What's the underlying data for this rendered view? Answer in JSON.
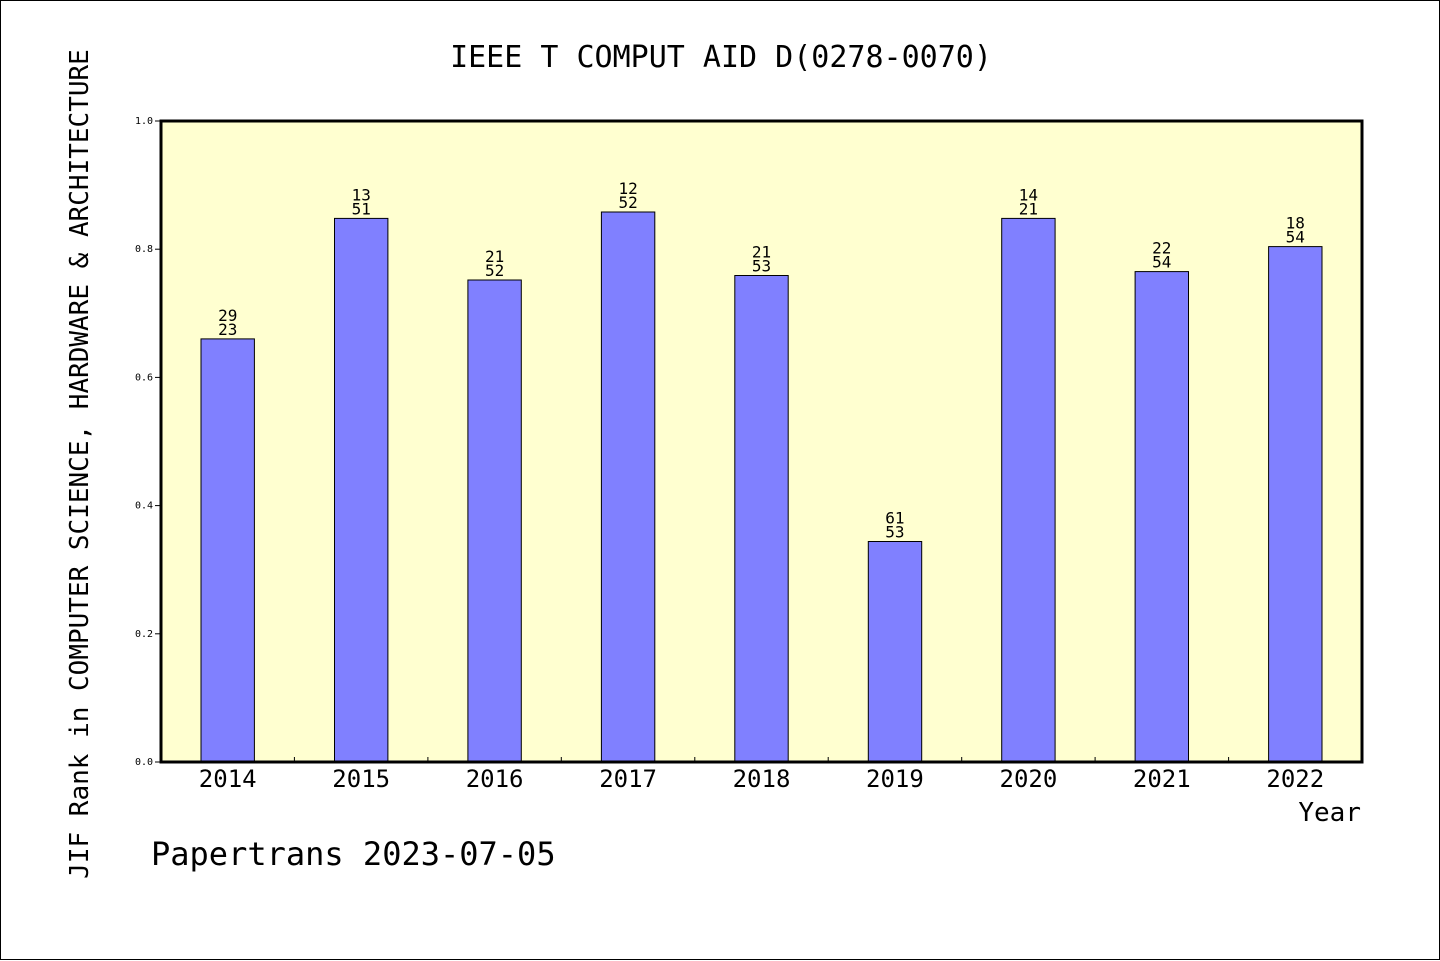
{
  "chart_data": {
    "type": "bar",
    "title": "IEEE T COMPUT AID D(0278-0070)",
    "xlabel": "Year",
    "ylabel": "JIF Rank in COMPUTER SCIENCE, HARDWARE & ARCHITECTURE",
    "ylim": [
      0,
      1.0
    ],
    "yticks": [
      "0.0",
      "0.2",
      "0.4",
      "0.6",
      "0.8",
      "1.0"
    ],
    "categories": [
      "2014",
      "2015",
      "2016",
      "2017",
      "2018",
      "2019",
      "2020",
      "2021",
      "2022"
    ],
    "values": [
      0.66,
      0.848,
      0.752,
      0.858,
      0.759,
      0.344,
      0.848,
      0.765,
      0.804
    ],
    "bar_labels": [
      [
        "29",
        "23"
      ],
      [
        "13",
        "51"
      ],
      [
        "21",
        "52"
      ],
      [
        "12",
        "52"
      ],
      [
        "21",
        "53"
      ],
      [
        "61",
        "53"
      ],
      [
        "14",
        "21"
      ],
      [
        "22",
        "54"
      ],
      [
        "18",
        "54"
      ]
    ],
    "grid": false,
    "colors": {
      "bar": "#8080ff",
      "plot_background": "#ffffd0",
      "axis": "#000000"
    }
  },
  "footer": {
    "credit": "Papertrans 2023-07-05"
  }
}
